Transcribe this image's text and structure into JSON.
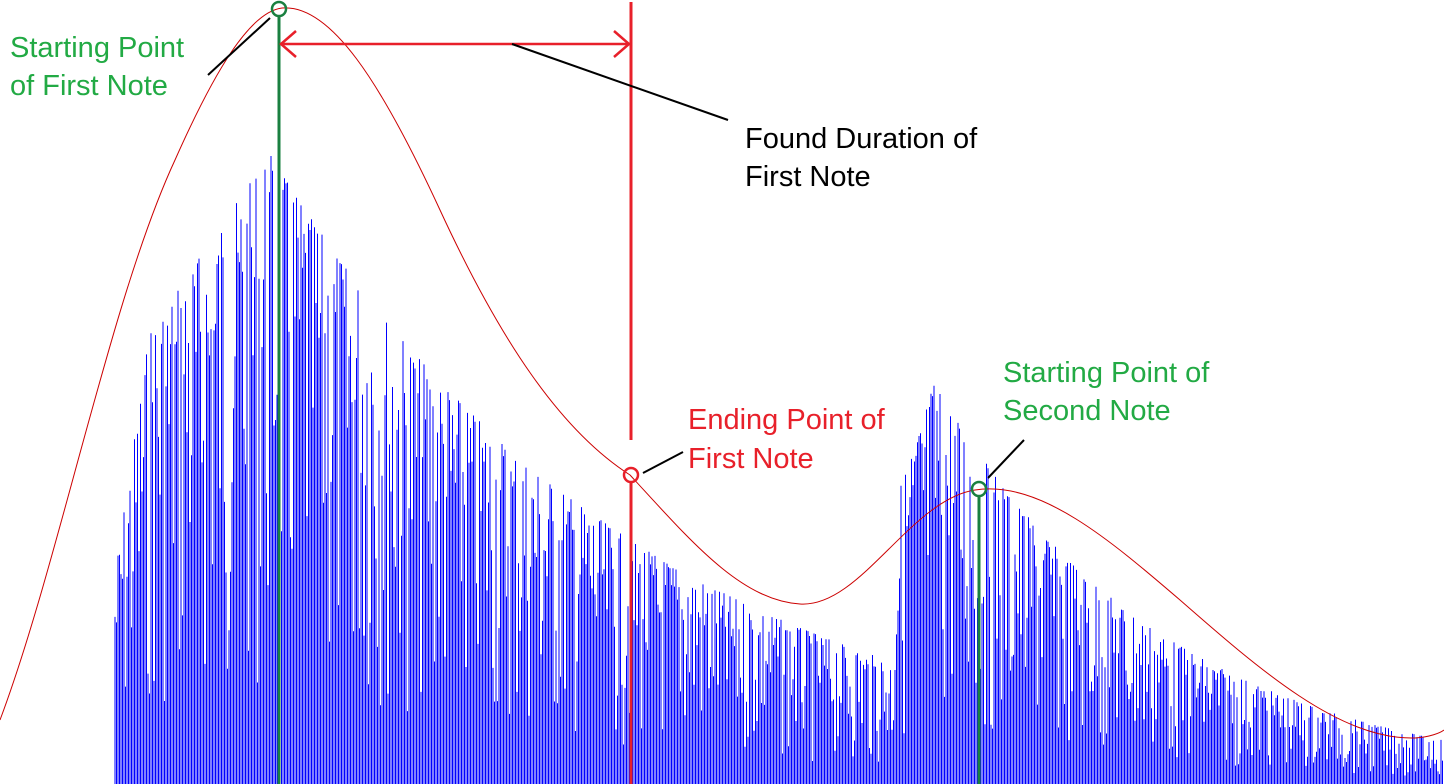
{
  "annotations": {
    "start_first": {
      "line1": "Starting Point",
      "line2": "of First Note",
      "color": "#22aa44"
    },
    "duration_first": {
      "line1": "Found Duration of",
      "line2": "First Note",
      "color": "#000000"
    },
    "end_first": {
      "line1": "Ending Point of",
      "line2": "First Note",
      "color": "#e8202a"
    },
    "start_second": {
      "line1": "Starting Point of",
      "line2": "Second Note",
      "color": "#22aa44"
    }
  },
  "colors": {
    "waveform": "#0000ff",
    "envelope": "#cc0000",
    "start_marker": "#1a8040",
    "end_marker": "#e8202a",
    "leader": "#000000"
  }
}
